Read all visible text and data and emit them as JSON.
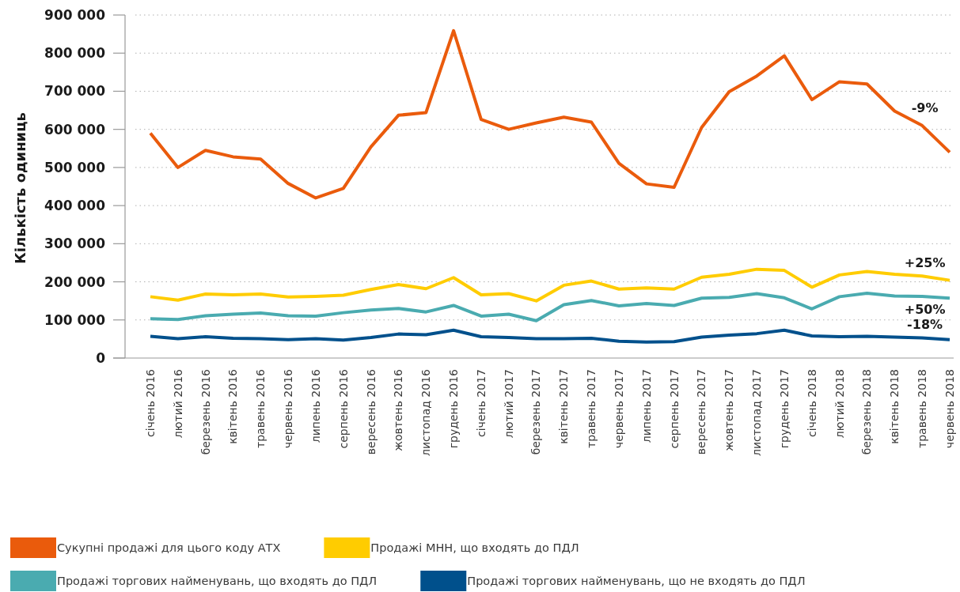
{
  "chart_data": {
    "type": "line",
    "ylabel": "Кількість одиниць",
    "categories": [
      "січень 2016",
      "лютий 2016",
      "березень 2016",
      "квітень 2016",
      "травень 2016",
      "червень 2016",
      "липень 2016",
      "серпень 2016",
      "вересень 2016",
      "жовтень 2016",
      "листопад 2016",
      "грудень 2016",
      "січень 2017",
      "лютий 2017",
      "березень 2017",
      "квітень 2017",
      "травень 2017",
      "червень 2017",
      "липень 2017",
      "серпень 2017",
      "вересень 2017",
      "жовтень 2017",
      "листопад 2017",
      "грудень 2017",
      "січень 2018",
      "лютий 2018",
      "березень 2018",
      "квітень 2018",
      "травень 2018",
      "червень 2018"
    ],
    "series": [
      {
        "name": "Сукупні продажі для цього коду АТХ",
        "color": "#ea5b0c",
        "values": [
          590000,
          500000,
          545000,
          528000,
          522000,
          458000,
          420000,
          445000,
          554000,
          637000,
          644000,
          859000,
          626000,
          600000,
          617000,
          632000,
          619000,
          511000,
          457000,
          448000,
          605000,
          699000,
          740000,
          793000,
          678000,
          725000,
          719000,
          648000,
          610000,
          540000
        ]
      },
      {
        "name": "Продажі МНН, що входять до ПДЛ",
        "color": "#ffcc00",
        "values": [
          161000,
          152000,
          168000,
          166000,
          168000,
          160000,
          162000,
          165000,
          180000,
          193000,
          182000,
          211000,
          166000,
          169000,
          150000,
          191000,
          202000,
          181000,
          184000,
          181000,
          212000,
          220000,
          233000,
          230000,
          186000,
          218000,
          227000,
          220000,
          215000,
          204000
        ]
      },
      {
        "name": "Продажі торгових найменувань, що входять до ПДЛ",
        "color": "#4aabb0",
        "values": [
          103000,
          101000,
          111000,
          115000,
          118000,
          111000,
          110000,
          119000,
          126000,
          130000,
          121000,
          138000,
          110000,
          115000,
          98000,
          140000,
          151000,
          137000,
          143000,
          138000,
          157000,
          159000,
          169000,
          158000,
          129000,
          161000,
          170000,
          163000,
          162000,
          157000
        ]
      },
      {
        "name": "Продажі торгових найменувань, що не входять до ПДЛ",
        "color": "#00508c",
        "values": [
          57000,
          51000,
          56000,
          52000,
          51000,
          48000,
          51000,
          47000,
          54000,
          63000,
          61000,
          73000,
          56000,
          54000,
          51000,
          51000,
          52000,
          44000,
          42000,
          43000,
          55000,
          60000,
          64000,
          73000,
          58000,
          56000,
          57000,
          55000,
          53000,
          48000
        ]
      }
    ],
    "ylim": [
      0,
      900000
    ],
    "yticks": [
      {
        "value": 0,
        "label": "0"
      },
      {
        "value": 100000,
        "label": "100 000"
      },
      {
        "value": 200000,
        "label": "200 000"
      },
      {
        "value": 300000,
        "label": "300 000"
      },
      {
        "value": 400000,
        "label": "400 000"
      },
      {
        "value": 500000,
        "label": "500 000"
      },
      {
        "value": 600000,
        "label": "600 000"
      },
      {
        "value": 700000,
        "label": "700 000"
      },
      {
        "value": 800000,
        "label": "800 000"
      },
      {
        "value": 900000,
        "label": "900 000"
      }
    ],
    "grid": "y",
    "legend": "bottom",
    "annotations": [
      "-9%",
      "+25%",
      "+50%",
      "-18%"
    ]
  }
}
